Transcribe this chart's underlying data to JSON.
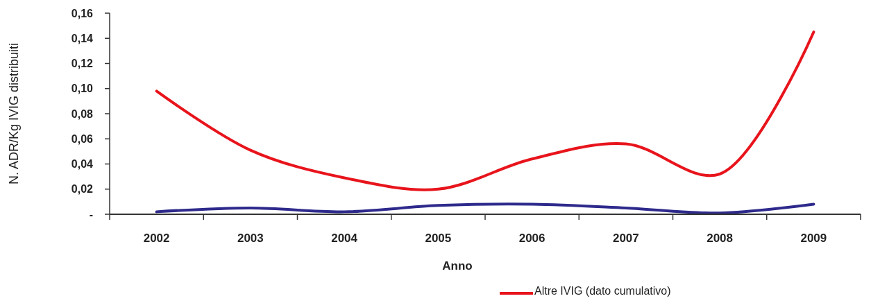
{
  "chart_data": {
    "type": "line",
    "xlabel": "Anno",
    "ylabel": "N. ADR/Kg IVIG distribuiti",
    "categories": [
      "2002",
      "2003",
      "2004",
      "2005",
      "2006",
      "2007",
      "2008",
      "2009"
    ],
    "series": [
      {
        "color": "#2e2a8c",
        "values": [
          0.002,
          0.005,
          0.002,
          0.007,
          0.008,
          0.005,
          0.001,
          0.008
        ]
      },
      {
        "name": "Altre IVIG (dato cumulativo)",
        "color": "#e8141c",
        "values": [
          0.098,
          0.051,
          0.029,
          0.02,
          0.044,
          0.056,
          0.032,
          0.145
        ]
      }
    ],
    "ylim": [
      0,
      0.16
    ],
    "yticks": [
      {
        "value": 0,
        "label": "-"
      },
      {
        "value": 0.02,
        "label": "0,02"
      },
      {
        "value": 0.04,
        "label": "0,04"
      },
      {
        "value": 0.06,
        "label": "0,06"
      },
      {
        "value": 0.08,
        "label": "0,08"
      },
      {
        "value": 0.1,
        "label": "0,10"
      },
      {
        "value": 0.12,
        "label": "0,12"
      },
      {
        "value": 0.14,
        "label": "0,14"
      },
      {
        "value": 0.16,
        "label": "0,16"
      }
    ],
    "grid": false,
    "legend": "bottom",
    "marker": "none",
    "line_style": "solid"
  }
}
